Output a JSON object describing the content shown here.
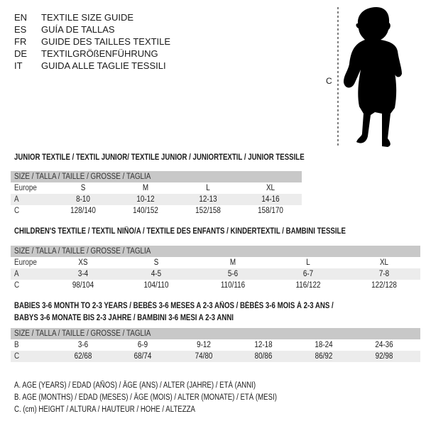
{
  "header": {
    "languages": [
      {
        "code": "EN",
        "title": "TEXTILE SIZE GUIDE"
      },
      {
        "code": "ES",
        "title": "GUÍA DE TALLAS"
      },
      {
        "code": "FR",
        "title": "GUIDE DES TAILLES TEXTILE"
      },
      {
        "code": "DE",
        "title": "TEXTILGRÖßENFÜHRUNG"
      },
      {
        "code": "IT",
        "title": "GUIDA ALLE TAGLIE TESSILI"
      }
    ]
  },
  "figure": {
    "measure_label": "C",
    "icon": "baby-silhouette"
  },
  "size_header": "SIZE / TALLA / TAILLE / GRÖSSE / TAGLIA",
  "junior": {
    "title": "JUNIOR TEXTILE / TEXTIL JUNIOR/ TEXTILE JUNIOR / JUNIORTEXTIL / JUNIOR TESSILE",
    "rows": [
      {
        "label": "Europe",
        "values": [
          "S",
          "M",
          "L",
          "XL"
        ]
      },
      {
        "label": "A",
        "values": [
          "8-10",
          "10-12",
          "12-13",
          "14-16"
        ]
      },
      {
        "label": "C",
        "values": [
          "128/140",
          "140/152",
          "152/158",
          "158/170"
        ]
      }
    ]
  },
  "children": {
    "title": "CHILDREN'S TEXTILE / TEXTIL NIÑO/A / TEXTILE DES ENFANTS / KINDERTEXTIL / BAMBINI TESSILE",
    "rows": [
      {
        "label": "Europe",
        "values": [
          "XS",
          "S",
          "M",
          "L",
          "XL"
        ]
      },
      {
        "label": "A",
        "values": [
          "3-4",
          "4-5",
          "5-6",
          "6-7",
          "7-8"
        ]
      },
      {
        "label": "C",
        "values": [
          "98/104",
          "104/110",
          "110/116",
          "116/122",
          "122/128"
        ]
      }
    ]
  },
  "babies": {
    "title_line1": "BABIES 3-6 MONTH TO 2-3 YEARS / BEBÉS 3-6 MESES A 2-3 AÑOS / BÉBÉS 3-6 MOIS À 2-3 ANS /",
    "title_line2": "BABYS 3-6 MONATE BIS 2-3 JAHRE / BAMBINI 3-6 MESI A 2-3 ANNI",
    "rows": [
      {
        "label": "B",
        "values": [
          "3-6",
          "6-9",
          "9-12",
          "12-18",
          "18-24",
          "24-36"
        ]
      },
      {
        "label": "C",
        "values": [
          "62/68",
          "68/74",
          "74/80",
          "80/86",
          "86/92",
          "92/98"
        ]
      }
    ]
  },
  "legend": [
    "A. AGE (YEARS) / EDAD (AÑOS) / ÂGE (ANS) / ALTER (JAHRE) / ETÀ (ANNI)",
    "B. AGE (MONTHS) / EDAD (MESES) / ÂGE (MOIS) / ALTER (MONATE) / ETÀ (MESI)",
    "C. (cm) HEIGHT / ALTURA / HAUTEUR / HÖHE / ALTEZZA"
  ]
}
